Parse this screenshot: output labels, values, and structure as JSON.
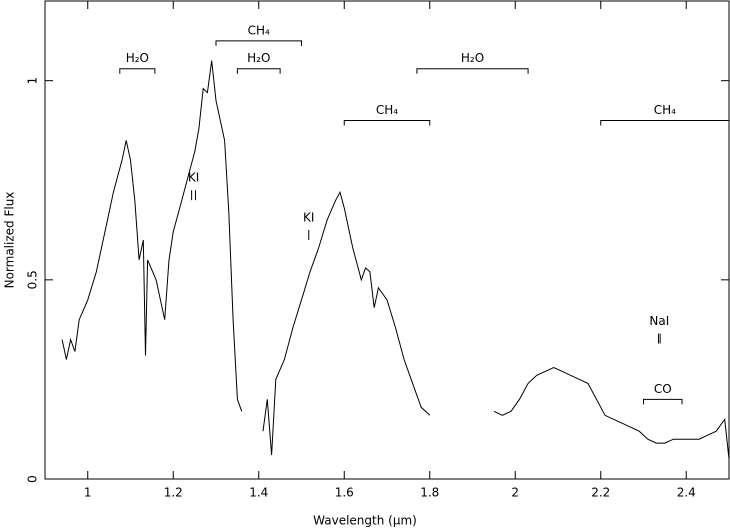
{
  "chart_data": {
    "type": "line",
    "xlabel": "Wavelength (μm)",
    "ylabel": "Normalized Flux",
    "xlim": [
      0.9,
      2.5
    ],
    "ylim": [
      0,
      1.2
    ],
    "xticks": [
      1,
      1.2,
      1.4,
      1.6,
      1.8,
      2,
      2.2,
      2.4
    ],
    "yticks": [
      0,
      0.5,
      1
    ],
    "color": "#000000",
    "x": [
      0.94,
      0.95,
      0.96,
      0.97,
      0.98,
      1.0,
      1.02,
      1.04,
      1.06,
      1.08,
      1.09,
      1.1,
      1.11,
      1.12,
      1.13,
      1.135,
      1.14,
      1.16,
      1.17,
      1.18,
      1.19,
      1.2,
      1.22,
      1.24,
      1.25,
      1.26,
      1.27,
      1.28,
      1.29,
      1.3,
      1.31,
      1.32,
      1.33,
      1.34,
      1.35,
      1.36,
      1.385,
      1.41,
      1.42,
      1.43,
      1.44,
      1.46,
      1.48,
      1.5,
      1.52,
      1.54,
      1.56,
      1.58,
      1.59,
      1.6,
      1.62,
      1.64,
      1.65,
      1.66,
      1.67,
      1.68,
      1.7,
      1.72,
      1.74,
      1.76,
      1.78,
      1.8,
      1.875,
      1.95,
      1.97,
      1.99,
      2.01,
      2.03,
      2.05,
      2.07,
      2.09,
      2.11,
      2.13,
      2.15,
      2.17,
      2.19,
      2.21,
      2.23,
      2.25,
      2.27,
      2.29,
      2.31,
      2.33,
      2.35,
      2.37,
      2.39,
      2.41,
      2.43,
      2.45,
      2.47,
      2.49,
      2.5
    ],
    "values": [
      0.35,
      0.3,
      0.35,
      0.32,
      0.4,
      0.45,
      0.52,
      0.62,
      0.72,
      0.8,
      0.85,
      0.8,
      0.7,
      0.55,
      0.6,
      0.31,
      0.55,
      0.5,
      0.45,
      0.4,
      0.55,
      0.62,
      0.7,
      0.78,
      0.82,
      0.88,
      0.98,
      0.97,
      1.05,
      0.95,
      0.9,
      0.85,
      0.67,
      0.4,
      0.2,
      0.17,
      null,
      0.12,
      0.2,
      0.06,
      0.25,
      0.3,
      0.38,
      0.45,
      0.52,
      0.58,
      0.65,
      0.7,
      0.72,
      0.68,
      0.58,
      0.5,
      0.53,
      0.52,
      0.43,
      0.48,
      0.45,
      0.38,
      0.3,
      0.24,
      0.18,
      0.16,
      null,
      0.17,
      0.16,
      0.17,
      0.2,
      0.24,
      0.26,
      0.27,
      0.28,
      0.27,
      0.26,
      0.25,
      0.24,
      0.2,
      0.16,
      0.15,
      0.14,
      0.13,
      0.12,
      0.1,
      0.09,
      0.09,
      0.1,
      0.1,
      0.1,
      0.1,
      0.11,
      0.12,
      0.15,
      0.05
    ],
    "bands": [
      {
        "label": "H₂O",
        "x": [
          1.075,
          1.157
        ],
        "y": 1.03
      },
      {
        "label": "CH₄",
        "x": [
          1.3,
          1.5
        ],
        "y": 1.1
      },
      {
        "label": "H₂O",
        "x": [
          1.35,
          1.45
        ],
        "y": 1.03
      },
      {
        "label": "H₂O",
        "x": [
          1.77,
          2.03
        ],
        "y": 1.03
      },
      {
        "label": "CH₄",
        "x": [
          1.6,
          1.8
        ],
        "y": 0.9
      },
      {
        "label": "CH₄",
        "x": [
          2.2,
          2.5
        ],
        "y": 0.9
      },
      {
        "label": "CO",
        "x": [
          2.3,
          2.39
        ],
        "y": 0.2
      }
    ],
    "lines": [
      {
        "label": "KI",
        "x": [
          1.243,
          1.252
        ],
        "y": 0.7
      },
      {
        "label": "KI",
        "x": [
          1.517
        ],
        "y": 0.6
      },
      {
        "label": "NaI",
        "x": [
          2.335,
          2.339
        ],
        "y": 0.34
      }
    ]
  }
}
